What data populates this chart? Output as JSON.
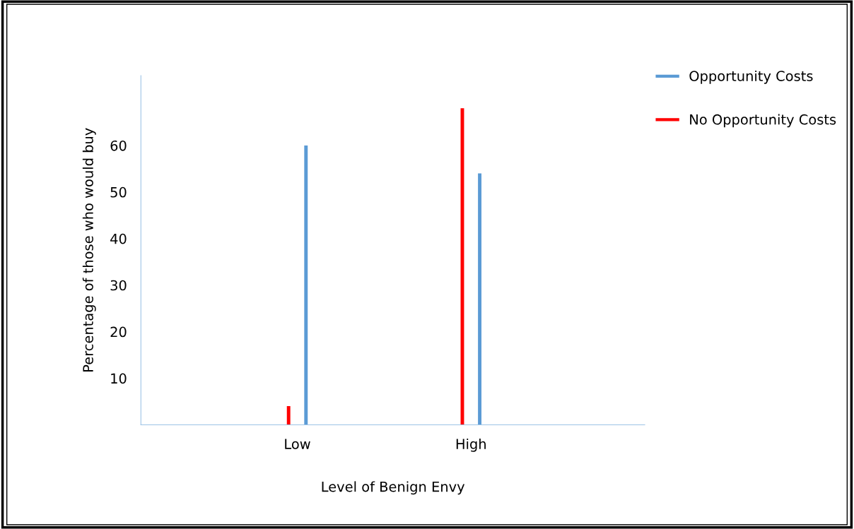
{
  "chart_data": {
    "type": "bar",
    "xlabel": "Level of Benign Envy",
    "ylabel": "Percentage of those who would buy",
    "categories": [
      "Low",
      "High"
    ],
    "series": [
      {
        "name": "No Opportunity Costs",
        "color": "#ff0000",
        "values": [
          4,
          68
        ]
      },
      {
        "name": "Opportunity Costs",
        "color": "#5b9bd5",
        "values": [
          60,
          54
        ]
      }
    ],
    "ylim": [
      0,
      75
    ],
    "yticks": [
      10,
      20,
      30,
      40,
      50,
      60
    ],
    "grid": false,
    "legend": "top right"
  }
}
